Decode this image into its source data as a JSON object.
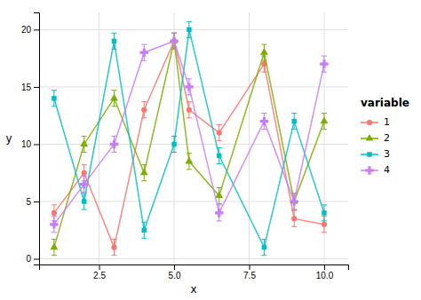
{
  "chart_data": {
    "type": "line",
    "xlabel": "x",
    "ylabel": "y",
    "legend_title": "variable",
    "x": [
      1,
      2,
      3,
      4,
      5,
      5.5,
      6.5,
      8,
      9,
      10
    ],
    "series": [
      {
        "name": "1",
        "color": "#f8766d",
        "marker": "circle",
        "values": [
          4,
          7.5,
          1,
          13,
          19,
          13,
          11,
          17,
          3.5,
          3
        ],
        "errors": [
          0.7,
          0.7,
          0.7,
          0.7,
          0.7,
          0.7,
          0.7,
          0.7,
          0.7,
          0.7
        ]
      },
      {
        "name": "2",
        "color": "#7cae00",
        "marker": "triangle",
        "values": [
          1,
          10,
          14,
          7.5,
          19,
          8.5,
          5.5,
          18,
          5,
          12
        ],
        "errors": [
          0.7,
          0.7,
          0.7,
          0.7,
          0.7,
          0.7,
          0.7,
          0.7,
          0.7,
          0.7
        ]
      },
      {
        "name": "3",
        "color": "#00bfc4",
        "marker": "square",
        "values": [
          14,
          5,
          19,
          2.5,
          10,
          20,
          9,
          1,
          12,
          4
        ],
        "errors": [
          0.7,
          0.7,
          0.7,
          0.7,
          0.7,
          0.7,
          0.7,
          0.7,
          0.7,
          0.7
        ]
      },
      {
        "name": "4",
        "color": "#c77cff",
        "marker": "plus",
        "values": [
          3,
          6.5,
          10,
          18,
          19,
          15,
          4,
          12,
          5,
          17
        ],
        "errors": [
          0.7,
          0.7,
          0.7,
          0.7,
          0.7,
          0.7,
          0.7,
          0.7,
          0.7,
          0.7
        ]
      }
    ],
    "xlim": [
      0.5,
      10.8
    ],
    "ylim": [
      -0.5,
      21.5
    ],
    "xticks": [
      2.5,
      {
        "value": 5,
        "label": "5.0"
      },
      {
        "value": 7.5,
        "label": "7.5"
      },
      {
        "value": 10,
        "label": "10.0"
      }
    ],
    "yticks": [
      0,
      5,
      10,
      15,
      20
    ],
    "grid": true,
    "legend": "right"
  }
}
